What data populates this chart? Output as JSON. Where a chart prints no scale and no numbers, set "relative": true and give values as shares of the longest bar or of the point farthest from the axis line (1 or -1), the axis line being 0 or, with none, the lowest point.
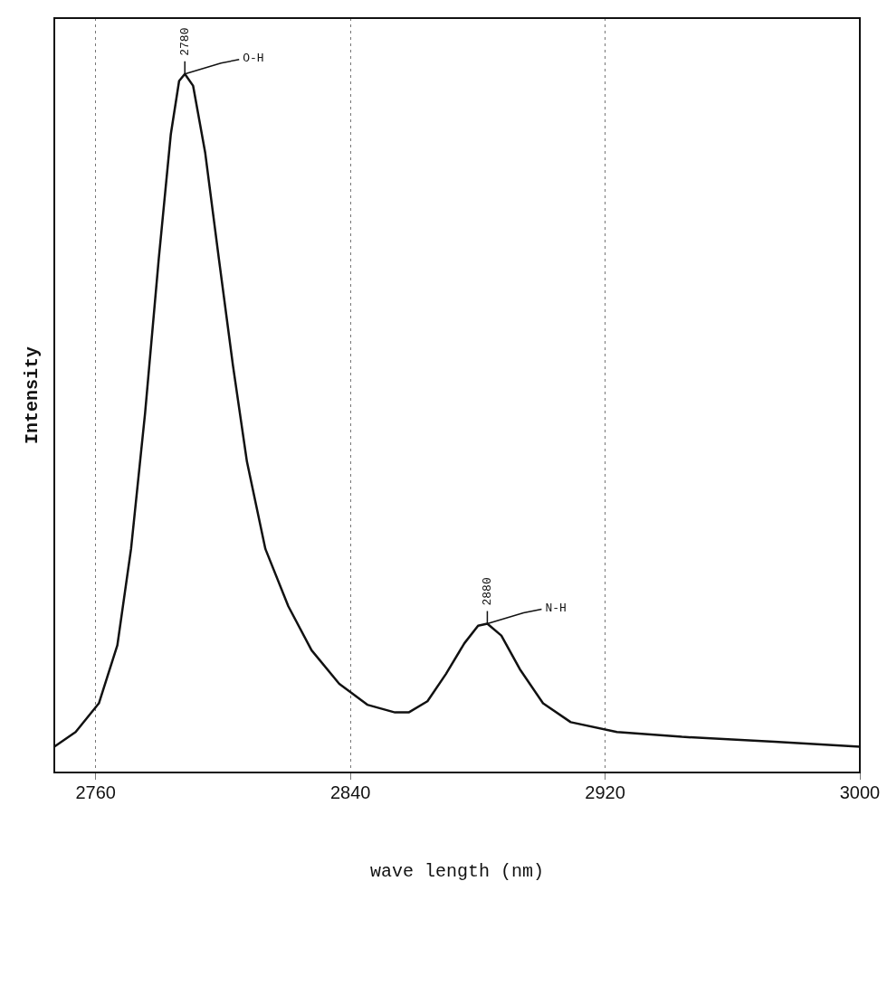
{
  "chart_data": {
    "type": "line",
    "xlabel": "wave length (nm)",
    "ylabel": "Intensity",
    "relative": true,
    "grid": "x",
    "legend": false,
    "marker": "none",
    "line_style": "solid",
    "xlim": [
      2747,
      3000
    ],
    "xticks": [
      2760,
      2840,
      2920,
      3000
    ],
    "series": [
      {
        "color": "#111111",
        "x": [
          2747,
          2753.7,
          2761,
          2766.8,
          2771.1,
          2775.5,
          2779.8,
          2783.6,
          2786.2,
          2788,
          2790.6,
          2794.4,
          2798.7,
          2803.1,
          2807.5,
          2813.3,
          2820.5,
          2827.8,
          2836.5,
          2845.3,
          2854,
          2858.3,
          2864.2,
          2870,
          2875.8,
          2880.1,
          2883,
          2887.4,
          2893.2,
          2900.5,
          2909.2,
          2923.7,
          2944.1,
          2973.2,
          3000
        ],
        "values": [
          0.037,
          0.058,
          0.099,
          0.182,
          0.32,
          0.514,
          0.735,
          0.914,
          0.99,
          1,
          0.983,
          0.887,
          0.735,
          0.583,
          0.445,
          0.32,
          0.238,
          0.175,
          0.127,
          0.097,
          0.086,
          0.086,
          0.102,
          0.141,
          0.185,
          0.21,
          0.213,
          0.196,
          0.148,
          0.099,
          0.072,
          0.058,
          0.051,
          0.044,
          0.037
        ]
      }
    ],
    "annotations": [
      "2780",
      "O-H",
      "2880",
      "N-H"
    ]
  }
}
